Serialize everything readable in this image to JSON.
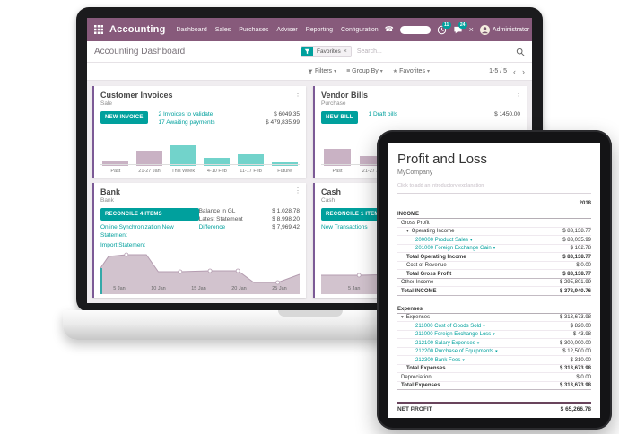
{
  "colors": {
    "navbar": "#875A7B",
    "primary": "#00A09D",
    "card_accent": "#7C5A96",
    "bar_mauve": "#C9B2C4",
    "bar_teal": "#72D3CB",
    "area_fill": "#CDBCC9",
    "area_stroke": "#B49CB0"
  },
  "icons": {
    "caret_down": "▾",
    "kebab": "⋮",
    "star": "★",
    "group_by": "≡",
    "chevron_left": "‹",
    "chevron_right": "›",
    "close": "×",
    "phone": "☎"
  },
  "navbar": {
    "app_name": "Accounting",
    "menu": [
      "Dashboard",
      "Sales",
      "Purchases",
      "Adviser",
      "Reporting",
      "Configuration"
    ],
    "activities_badge": "11",
    "messages_badge": "24",
    "user_name": "Administrator"
  },
  "control_panel": {
    "breadcrumb": "Accounting Dashboard",
    "facet_label": "Favorites",
    "search_placeholder": "Search...",
    "filters": "Filters",
    "group_by": "Group By",
    "favorites": "Favorites",
    "pager": "1-5 / 5"
  },
  "cards": {
    "customer_invoices": {
      "title": "Customer Invoices",
      "subtitle": "Sale",
      "button": "NEW INVOICE",
      "kpis": [
        {
          "label": "2 Invoices to validate",
          "value": "$ 6049.35"
        },
        {
          "label": "17 Awaiting payments",
          "value": "$ 479,835.99"
        }
      ]
    },
    "vendor_bills": {
      "title": "Vendor Bills",
      "subtitle": "Purchase",
      "button": "NEW BILL",
      "kpis": [
        {
          "label": "1 Draft bills",
          "value": "$ 1450.00"
        }
      ]
    },
    "bank": {
      "title": "Bank",
      "subtitle": "Bank",
      "button": "RECONCILE 4 ITEMS",
      "links": [
        "Online Synchronization New Statement",
        "Import Statement"
      ],
      "stats": [
        {
          "label": "Balance in GL",
          "value": "$ 1,028.78"
        },
        {
          "label": "Latest Statement",
          "value": "$ 8,998.20"
        },
        {
          "label": "Difference",
          "value": "$ 7,969.42"
        }
      ]
    },
    "cash": {
      "title": "Cash",
      "subtitle": "Cash",
      "button": "RECONCILE 1 ITEMS",
      "links": [
        "New Transactions"
      ]
    }
  },
  "charts": {
    "invoices": {
      "type": "bar",
      "max": 40,
      "categories": [
        "Past",
        "21-27 Jan",
        "This Week",
        "4-10 Feb",
        "11-17 Feb",
        "Future"
      ],
      "values": [
        10,
        26,
        36,
        13,
        20,
        6
      ],
      "colors": [
        "#C9B2C4",
        "#C9B2C4",
        "#72D3CB",
        "#72D3CB",
        "#72D3CB",
        "#72D3CB"
      ]
    },
    "vendor": {
      "type": "bar",
      "max": 40,
      "categories": [
        "Past",
        "21-27 Jan"
      ],
      "values": [
        30,
        17
      ],
      "colors": [
        "#C9B2C4",
        "#C9B2C4"
      ]
    },
    "bank": {
      "type": "area",
      "fill": "#CDBCC9",
      "stroke": "#B49CB0",
      "accent": "#00A09D",
      "points": [
        [
          0,
          42
        ],
        [
          4,
          16
        ],
        [
          13,
          12
        ],
        [
          23,
          12
        ],
        [
          29,
          50
        ],
        [
          40,
          50
        ],
        [
          55,
          48
        ],
        [
          69,
          48
        ],
        [
          77,
          74
        ],
        [
          89,
          74
        ],
        [
          100,
          56
        ]
      ],
      "markers": [
        [
          13,
          12
        ],
        [
          40,
          50
        ],
        [
          55,
          48
        ],
        [
          69,
          48
        ],
        [
          89,
          74
        ]
      ],
      "labels": [
        "5 Jan",
        "10 Jan",
        "15 Jan",
        "20 Jan",
        "25 Jan"
      ]
    },
    "cash": {
      "type": "area",
      "fill": "#CDBCC9",
      "stroke": "#B49CB0",
      "points": [
        [
          0,
          58
        ],
        [
          19,
          58
        ],
        [
          30,
          57
        ],
        [
          40,
          50
        ],
        [
          50,
          48
        ],
        [
          100,
          48
        ]
      ],
      "markers": [
        [
          19,
          58
        ]
      ],
      "labels": [
        "5 Jan"
      ]
    }
  },
  "report": {
    "title": "Profit and Loss",
    "company": "MyCompany",
    "intro_placeholder": "Click to add an introductory explanation",
    "column_header": "2018",
    "income": {
      "header": "INCOME",
      "rows": [
        {
          "label": "Gross Profit",
          "value": ""
        },
        {
          "label": "Operating Income",
          "value": "$ 83,138.77"
        },
        {
          "label": "200000 Product Sales",
          "value": "$ 83,035.99"
        },
        {
          "label": "201000 Foreign Exchange Gain",
          "value": "$ 102.78"
        },
        {
          "label": "Total Operating Income",
          "value": "$ 83,138.77"
        },
        {
          "label": "Cost of Revenue",
          "value": "$ 0.00"
        },
        {
          "label": "Total Gross Profit",
          "value": "$ 83,138.77"
        },
        {
          "label": "Other Income",
          "value": "$ 295,801.99"
        },
        {
          "label": "Total INCOME",
          "value": "$ 378,940.76"
        }
      ]
    },
    "expenses": {
      "header": "Expenses",
      "rows": [
        {
          "label": "Expenses",
          "value": "$ 313,673.98"
        },
        {
          "label": "211000 Cost of Goods Sold",
          "value": "$ 820.00"
        },
        {
          "label": "211000 Foreign Exchange Loss",
          "value": "$ 43.98"
        },
        {
          "label": "212100 Salary Expenses",
          "value": "$ 300,000.00"
        },
        {
          "label": "212200 Purchase of Equipments",
          "value": "$ 12,500.00"
        },
        {
          "label": "212300 Bank Fees",
          "value": "$ 310.00"
        },
        {
          "label": "Total Expenses",
          "value": "$ 313,673.98"
        },
        {
          "label": "Depreciation",
          "value": "$ 0.00"
        },
        {
          "label": "Total Expenses",
          "value": "$ 313,673.98"
        }
      ]
    },
    "net_profit": {
      "label": "NET PROFIT",
      "value": "$ 65,266.78"
    }
  }
}
